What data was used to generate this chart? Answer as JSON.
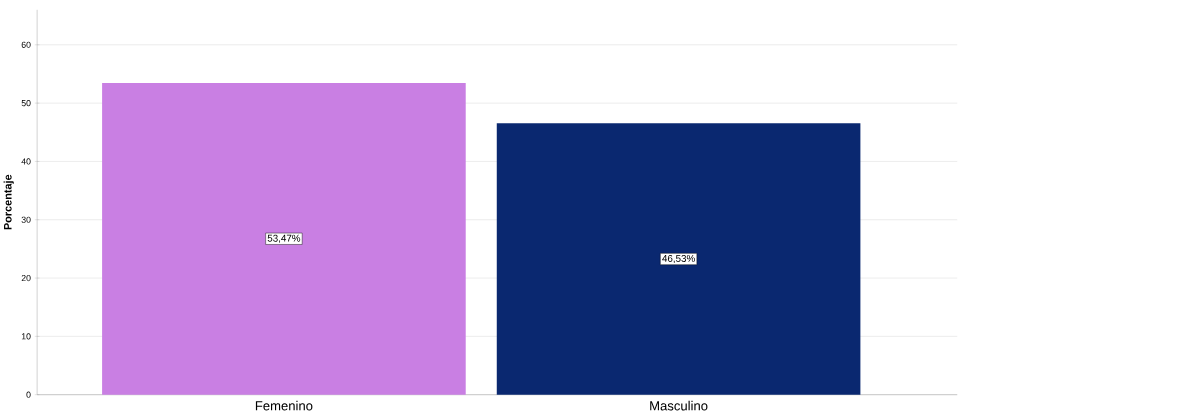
{
  "chart_data": {
    "type": "bar",
    "ylabel": "Porcentaje",
    "categories": [
      "Femenino",
      "Masculino"
    ],
    "values": [
      53.47,
      46.53
    ],
    "colors": [
      "#c97fe3",
      "#0a2870"
    ],
    "value_labels": [
      "53,47%",
      "46,53%"
    ],
    "ylim": [
      0,
      66
    ],
    "yticks": [
      0,
      10,
      20,
      30,
      40,
      50,
      60
    ],
    "grid": "y"
  }
}
